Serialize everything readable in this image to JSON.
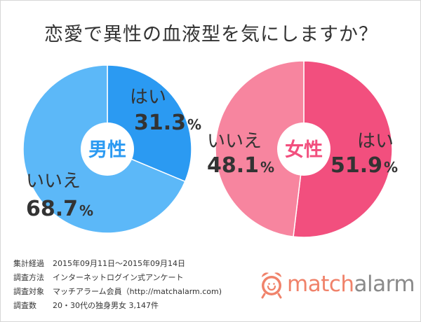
{
  "title": "恋愛で異性の血液型を気にしますか？",
  "chart_data": [
    {
      "type": "pie",
      "center_label": "男性",
      "categories": [
        "はい",
        "いいえ"
      ],
      "values": [
        31.3,
        68.7
      ],
      "value_labels": [
        "31.3",
        "68.7"
      ],
      "unit": "%",
      "colors": [
        "#2b9af2",
        "#5cb8f8"
      ],
      "center_color": "#2b9af2"
    },
    {
      "type": "pie",
      "center_label": "女性",
      "categories": [
        "はい",
        "いいえ"
      ],
      "values": [
        51.9,
        48.1
      ],
      "value_labels": [
        "51.9",
        "48.1"
      ],
      "unit": "%",
      "colors": [
        "#f24f7e",
        "#f7859f"
      ],
      "center_color": "#f24f7e"
    }
  ],
  "survey": [
    {
      "label": "集計経過",
      "value": "2015年09月11日〜2015年09月14日"
    },
    {
      "label": "調査方法",
      "value": "インターネットログイン式アンケート"
    },
    {
      "label": "調査対象",
      "value": "マッチアラーム会員（http://matchalarm.com)"
    },
    {
      "label": "調査数",
      "value": "20・30代の独身男女 3,147件"
    }
  ],
  "logo": {
    "part1": "match",
    "part2": "alarm",
    "icon": "alarm-clock-icon"
  }
}
